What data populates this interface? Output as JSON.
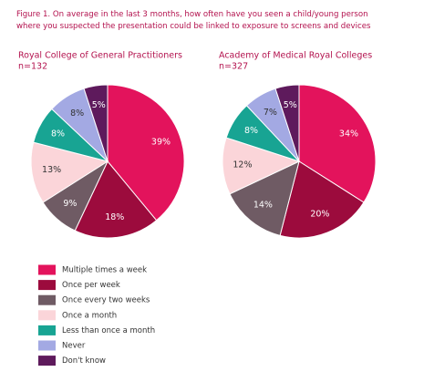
{
  "title": "Figure 1. On average in the last 3 months, how often have you seen a child/young person where you suspected the presentation could be linked to exposure to screens and devices",
  "chart_data": [
    {
      "type": "pie",
      "title": "Royal College of General Practitioners",
      "subtitle": "n=132",
      "categories": [
        "Multiple times a week",
        "Once per week",
        "Once every two weeks",
        "Once a month",
        "Less than once a month",
        "Never",
        "Don't know"
      ],
      "values": [
        39,
        18,
        9,
        13,
        8,
        8,
        5
      ],
      "value_labels": [
        "39%",
        "18%",
        "9%",
        "13%",
        "8%",
        "8%",
        "5%"
      ],
      "colors": [
        "#e3135c",
        "#9c0b3d",
        "#6f5b64",
        "#fbd5d9",
        "#18a493",
        "#a3a9e3",
        "#5e1a5c"
      ]
    },
    {
      "type": "pie",
      "title": "Academy of Medical Royal Colleges",
      "subtitle": "n=327",
      "categories": [
        "Multiple times a week",
        "Once per week",
        "Once every two weeks",
        "Once a month",
        "Less than once a month",
        "Never",
        "Don't know"
      ],
      "values": [
        34,
        20,
        14,
        12,
        8,
        7,
        5
      ],
      "value_labels": [
        "34%",
        "20%",
        "14%",
        "12%",
        "8%",
        "7%",
        "5%"
      ],
      "colors": [
        "#e3135c",
        "#9c0b3d",
        "#6f5b64",
        "#fbd5d9",
        "#18a493",
        "#a3a9e3",
        "#5e1a5c"
      ]
    }
  ]
}
